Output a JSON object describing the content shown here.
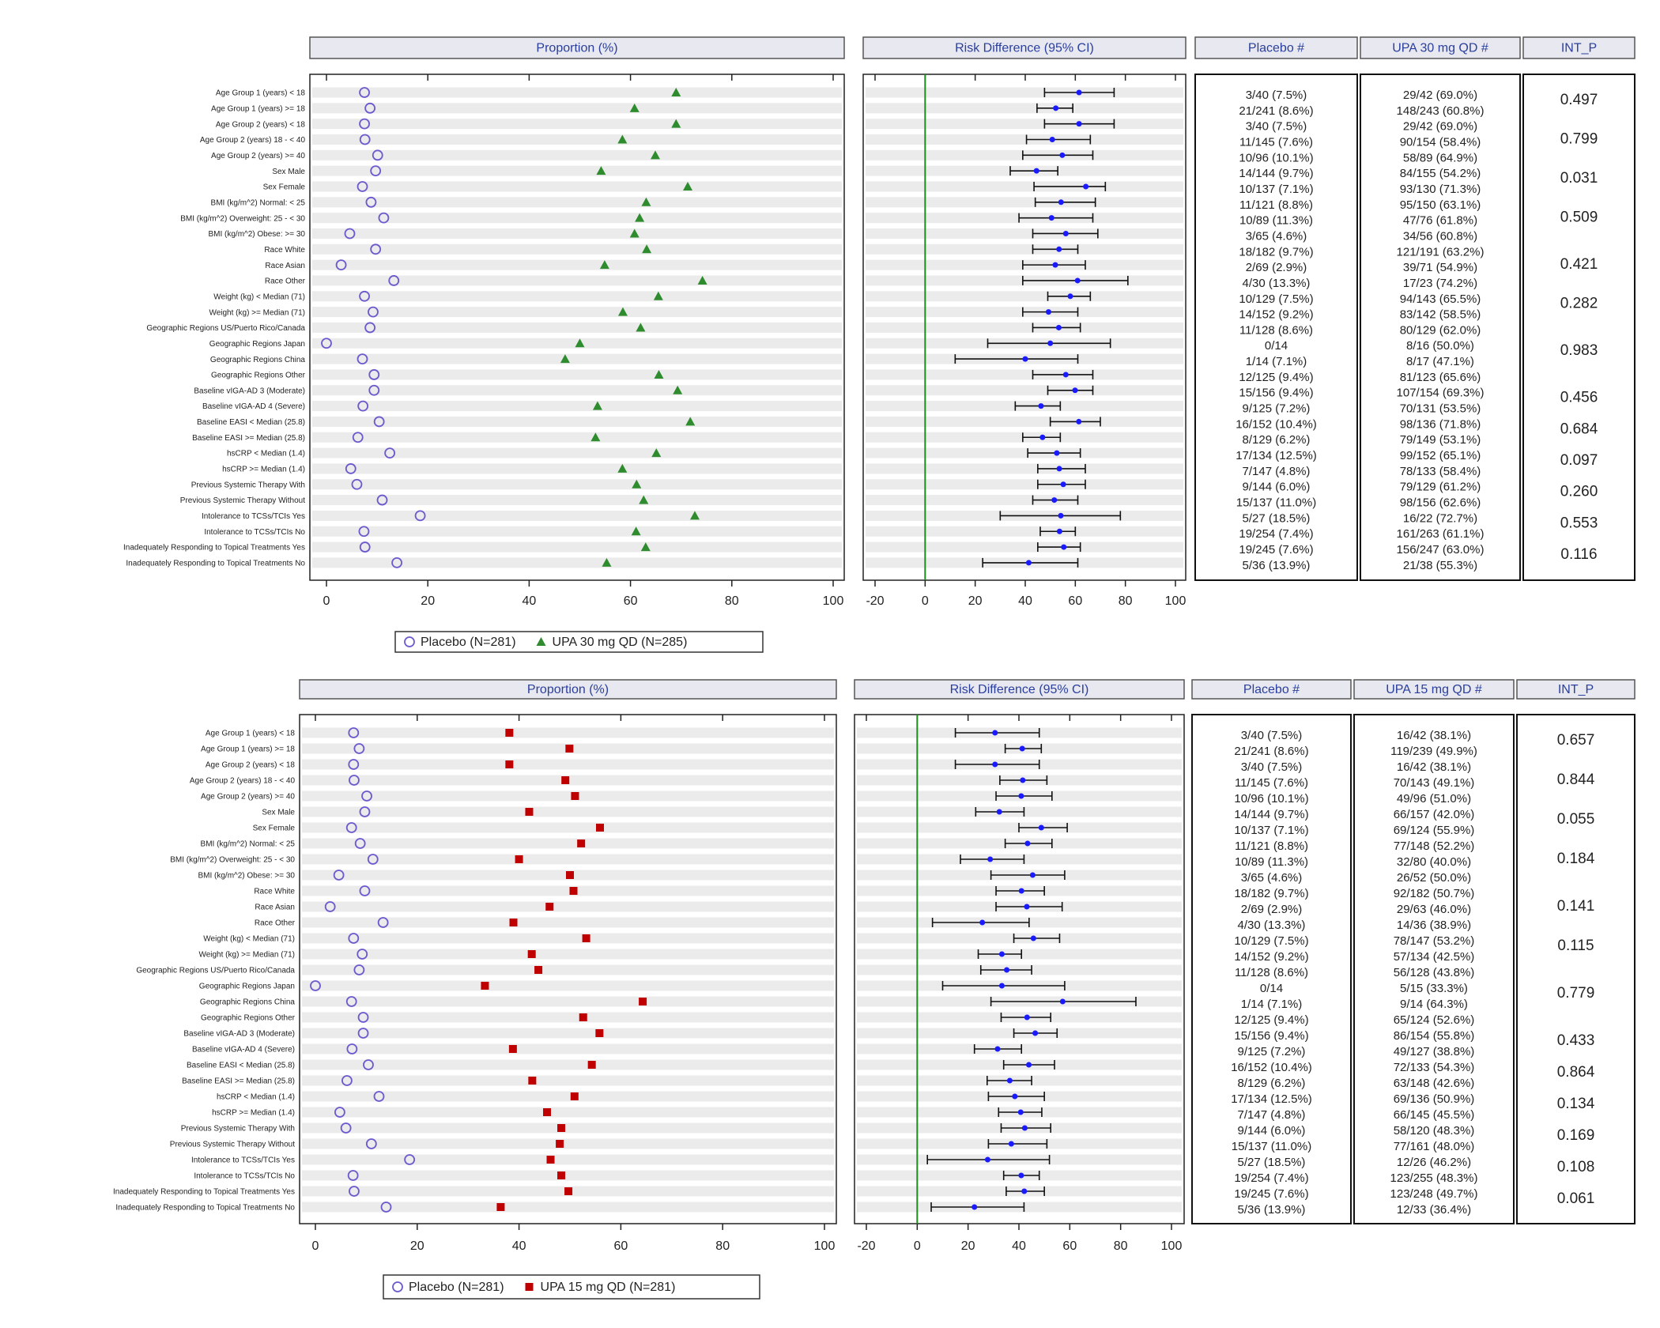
{
  "chart_data": [
    {
      "type": "forest",
      "proportion_title": "Proportion (%)",
      "risk_title": "Risk Difference (95% CI)",
      "categories": [
        "Age Group 1 (years) < 18",
        "Age Group 1 (years) >= 18",
        "Age Group 2 (years) < 18",
        "Age Group 2 (years) 18 - < 40",
        "Age Group 2 (years) >= 40",
        "Sex Male",
        "Sex Female",
        "BMI (kg/m^2) Normal: < 25",
        "BMI (kg/m^2) Overweight: 25 - < 30",
        "BMI (kg/m^2) Obese: >= 30",
        "Race White",
        "Race Asian",
        "Race Other",
        "Weight (kg) < Median (71)",
        "Weight (kg) >= Median (71)",
        "Geographic Regions US/Puerto Rico/Canada",
        "Geographic Regions Japan",
        "Geographic Regions China",
        "Geographic Regions Other",
        "Baseline vIGA-AD 3 (Moderate)",
        "Baseline vIGA-AD 4 (Severe)",
        "Baseline EASI < Median (25.8)",
        "Baseline EASI >= Median (25.8)",
        "hsCRP < Median (1.4)",
        "hsCRP >= Median (1.4)",
        "Previous Systemic Therapy With",
        "Previous Systemic Therapy Without",
        "Intolerance to TCSs/TCIs Yes",
        "Intolerance to TCSs/TCIs No",
        "Inadequately Responding to Topical Treatments Yes",
        "Inadequately Responding to Topical Treatments No"
      ],
      "xlim": [
        0,
        100
      ],
      "xticks": [
        0,
        20,
        40,
        60,
        80,
        100
      ],
      "risk_xlim": [
        -20,
        100
      ],
      "risk_xticks": [
        -20,
        0,
        20,
        40,
        60,
        80,
        100
      ],
      "risk_reference": 0,
      "series": [
        {
          "name": "Placebo (N=281)",
          "color": "#6a5acd",
          "marker": "circle",
          "values": [
            7.5,
            8.6,
            7.5,
            7.6,
            10.1,
            9.7,
            7.1,
            8.8,
            11.3,
            4.6,
            9.7,
            2.9,
            13.3,
            7.5,
            9.2,
            8.6,
            0,
            7.1,
            9.4,
            9.4,
            7.2,
            10.4,
            6.2,
            12.5,
            4.8,
            6.0,
            11.0,
            18.5,
            7.4,
            7.6,
            13.9
          ]
        },
        {
          "name": "UPA 30 mg QD (N=285)",
          "color": "#2e8b2e",
          "marker": "triangle",
          "values": [
            69.0,
            60.8,
            69.0,
            58.4,
            64.9,
            54.2,
            71.3,
            63.1,
            61.8,
            60.8,
            63.2,
            54.9,
            74.2,
            65.5,
            58.5,
            62.0,
            50.0,
            47.1,
            65.6,
            69.3,
            53.5,
            71.8,
            53.1,
            65.1,
            58.4,
            61.2,
            62.6,
            72.7,
            61.1,
            63.0,
            55.3
          ]
        }
      ],
      "risk_difference": {
        "color": "#1a1aff",
        "values": [
          61.5,
          52.2,
          61.5,
          50.8,
          54.8,
          44.5,
          64.2,
          54.3,
          50.5,
          56.2,
          53.5,
          52.0,
          60.9,
          58.0,
          49.3,
          53.4,
          50.0,
          40.0,
          56.2,
          59.9,
          46.3,
          61.4,
          46.9,
          52.6,
          53.6,
          55.2,
          51.6,
          54.2,
          53.7,
          55.4,
          41.4
        ],
        "lower": [
          47.7,
          44.7,
          47.7,
          40.5,
          39,
          34,
          43.5,
          44,
          37.5,
          43,
          43,
          39,
          39,
          49,
          39,
          43,
          25,
          12,
          43,
          49,
          36,
          50,
          39,
          41,
          45,
          45,
          43,
          30,
          46,
          45,
          23
        ],
        "upper": [
          75.5,
          59,
          75.5,
          66,
          67,
          53,
          72,
          68,
          67,
          69,
          61,
          64,
          81,
          66,
          61,
          62,
          74,
          61,
          67,
          67,
          54,
          70,
          54,
          62,
          64,
          64,
          61,
          78,
          60,
          62,
          61
        ]
      },
      "table": {
        "headers": [
          "Placebo #",
          "UPA 30 mg QD #",
          "INT_P"
        ],
        "placebo": [
          "3/40 (7.5%)",
          "21/241 (8.6%)",
          "3/40 (7.5%)",
          "11/145 (7.6%)",
          "10/96 (10.1%)",
          "14/144 (9.7%)",
          "10/137 (7.1%)",
          "11/121 (8.8%)",
          "10/89 (11.3%)",
          "3/65 (4.6%)",
          "18/182 (9.7%)",
          "2/69 (2.9%)",
          "4/30 (13.3%)",
          "10/129 (7.5%)",
          "14/152 (9.2%)",
          "11/128 (8.6%)",
          "0/14",
          "1/14 (7.1%)",
          "12/125 (9.4%)",
          "15/156 (9.4%)",
          "9/125 (7.2%)",
          "16/152 (10.4%)",
          "8/129 (6.2%)",
          "17/134 (12.5%)",
          "7/147 (4.8%)",
          "9/144 (6.0%)",
          "15/137 (11.0%)",
          "5/27 (18.5%)",
          "19/254 (7.4%)",
          "19/245 (7.6%)",
          "5/36 (13.9%)"
        ],
        "active": [
          "29/42 (69.0%)",
          "148/243 (60.8%)",
          "29/42 (69.0%)",
          "90/154 (58.4%)",
          "58/89 (64.9%)",
          "84/155 (54.2%)",
          "93/130 (71.3%)",
          "95/150 (63.1%)",
          "47/76 (61.8%)",
          "34/56 (60.8%)",
          "121/191 (63.2%)",
          "39/71 (54.9%)",
          "17/23 (74.2%)",
          "94/143 (65.5%)",
          "83/142 (58.5%)",
          "80/129 (62.0%)",
          "8/16 (50.0%)",
          "8/17 (47.1%)",
          "81/123 (65.6%)",
          "107/154 (69.3%)",
          "70/131 (53.5%)",
          "98/136 (71.8%)",
          "79/149 (53.1%)",
          "99/152 (65.1%)",
          "78/133 (58.4%)",
          "79/129 (61.2%)",
          "98/156 (62.6%)",
          "16/22 (72.7%)",
          "161/263 (61.1%)",
          "156/247 (63.0%)",
          "21/38 (55.3%)"
        ],
        "int_p": [
          "0.497",
          null,
          "0.799",
          null,
          null,
          "0.031",
          null,
          "0.509",
          null,
          null,
          "0.421",
          null,
          null,
          "0.282",
          null,
          "0.983",
          null,
          null,
          null,
          "0.456",
          null,
          "0.684",
          null,
          "0.097",
          null,
          "0.260",
          null,
          "0.553",
          null,
          "0.116",
          null
        ]
      }
    },
    {
      "type": "forest",
      "proportion_title": "Proportion (%)",
      "risk_title": "Risk Difference (95% CI)",
      "categories": [
        "Age Group 1 (years) < 18",
        "Age Group 1 (years) >= 18",
        "Age Group 2 (years) < 18",
        "Age Group 2 (years) 18 - < 40",
        "Age Group 2 (years) >= 40",
        "Sex Male",
        "Sex Female",
        "BMI (kg/m^2) Normal: < 25",
        "BMI (kg/m^2) Overweight: 25 - < 30",
        "BMI (kg/m^2) Obese: >= 30",
        "Race White",
        "Race Asian",
        "Race Other",
        "Weight (kg) < Median (71)",
        "Weight (kg) >= Median (71)",
        "Geographic Regions US/Puerto Rico/Canada",
        "Geographic Regions Japan",
        "Geographic Regions China",
        "Geographic Regions Other",
        "Baseline vIGA-AD 3 (Moderate)",
        "Baseline vIGA-AD 4 (Severe)",
        "Baseline EASI < Median (25.8)",
        "Baseline EASI >= Median (25.8)",
        "hsCRP < Median (1.4)",
        "hsCRP >= Median (1.4)",
        "Previous Systemic Therapy With",
        "Previous Systemic Therapy Without",
        "Intolerance to TCSs/TCIs Yes",
        "Intolerance to TCSs/TCIs No",
        "Inadequately Responding to Topical Treatments Yes",
        "Inadequately Responding to Topical Treatments No"
      ],
      "xlim": [
        0,
        100
      ],
      "xticks": [
        0,
        20,
        40,
        60,
        80,
        100
      ],
      "risk_xlim": [
        -20,
        100
      ],
      "risk_xticks": [
        -20,
        0,
        20,
        40,
        60,
        80,
        100
      ],
      "risk_reference": 0,
      "series": [
        {
          "name": "Placebo (N=281)",
          "color": "#6a5acd",
          "marker": "circle",
          "values": [
            7.5,
            8.6,
            7.5,
            7.6,
            10.1,
            9.7,
            7.1,
            8.8,
            11.3,
            4.6,
            9.7,
            2.9,
            13.3,
            7.5,
            9.2,
            8.6,
            0,
            7.1,
            9.4,
            9.4,
            7.2,
            10.4,
            6.2,
            12.5,
            4.8,
            6.0,
            11.0,
            18.5,
            7.4,
            7.6,
            13.9
          ]
        },
        {
          "name": "UPA 15 mg QD (N=281)",
          "color": "#c00000",
          "marker": "square",
          "values": [
            38.1,
            49.9,
            38.1,
            49.1,
            51.0,
            42.0,
            55.9,
            52.2,
            40.0,
            50.0,
            50.7,
            46.0,
            38.9,
            53.2,
            42.5,
            43.8,
            33.3,
            64.3,
            52.6,
            55.8,
            38.8,
            54.3,
            42.6,
            50.9,
            45.5,
            48.3,
            48.0,
            46.2,
            48.3,
            49.7,
            36.4
          ]
        }
      ],
      "risk_difference": {
        "color": "#1a1aff",
        "values": [
          30.6,
          41.3,
          30.6,
          41.5,
          40.9,
          32.3,
          48.8,
          43.4,
          28.7,
          45.4,
          41.0,
          43.1,
          25.6,
          45.7,
          33.3,
          35.2,
          33.3,
          57.2,
          43.2,
          46.4,
          31.6,
          43.9,
          36.4,
          38.4,
          40.7,
          42.3,
          37.0,
          27.7,
          40.9,
          42.1,
          22.5
        ],
        "lower": [
          15,
          34.6,
          15,
          32.5,
          31,
          23,
          40,
          34.6,
          17,
          29,
          31,
          31,
          6,
          38,
          24,
          25,
          10,
          29,
          33,
          38,
          22.5,
          34,
          27.5,
          28,
          32,
          33,
          28,
          4,
          34,
          35,
          5.5
        ],
        "upper": [
          48,
          48.8,
          48,
          51,
          53,
          42,
          59,
          53,
          42,
          58,
          50,
          57,
          44,
          56,
          41,
          45,
          58,
          86,
          52.5,
          55,
          41,
          54,
          45,
          50,
          49,
          52.5,
          51,
          52,
          48,
          50,
          42
        ]
      },
      "table": {
        "headers": [
          "Placebo #",
          "UPA 15 mg QD #",
          "INT_P"
        ],
        "placebo": [
          "3/40 (7.5%)",
          "21/241 (8.6%)",
          "3/40 (7.5%)",
          "11/145 (7.6%)",
          "10/96 (10.1%)",
          "14/144 (9.7%)",
          "10/137 (7.1%)",
          "11/121 (8.8%)",
          "10/89 (11.3%)",
          "3/65 (4.6%)",
          "18/182 (9.7%)",
          "2/69 (2.9%)",
          "4/30 (13.3%)",
          "10/129 (7.5%)",
          "14/152 (9.2%)",
          "11/128 (8.6%)",
          "0/14",
          "1/14 (7.1%)",
          "12/125 (9.4%)",
          "15/156 (9.4%)",
          "9/125 (7.2%)",
          "16/152 (10.4%)",
          "8/129 (6.2%)",
          "17/134 (12.5%)",
          "7/147 (4.8%)",
          "9/144 (6.0%)",
          "15/137 (11.0%)",
          "5/27 (18.5%)",
          "19/254 (7.4%)",
          "19/245 (7.6%)",
          "5/36 (13.9%)"
        ],
        "active": [
          "16/42 (38.1%)",
          "119/239 (49.9%)",
          "16/42 (38.1%)",
          "70/143 (49.1%)",
          "49/96 (51.0%)",
          "66/157 (42.0%)",
          "69/124 (55.9%)",
          "77/148 (52.2%)",
          "32/80 (40.0%)",
          "26/52 (50.0%)",
          "92/182 (50.7%)",
          "29/63 (46.0%)",
          "14/36 (38.9%)",
          "78/147 (53.2%)",
          "57/134 (42.5%)",
          "56/128 (43.8%)",
          "5/15 (33.3%)",
          "9/14 (64.3%)",
          "65/124 (52.6%)",
          "86/154 (55.8%)",
          "49/127 (38.8%)",
          "72/133 (54.3%)",
          "63/148 (42.6%)",
          "69/136 (50.9%)",
          "66/145 (45.5%)",
          "58/120 (48.3%)",
          "77/161 (48.0%)",
          "12/26 (46.2%)",
          "123/255 (48.3%)",
          "123/248 (49.7%)",
          "12/33 (36.4%)"
        ],
        "int_p": [
          "0.657",
          null,
          "0.844",
          null,
          null,
          "0.055",
          null,
          "0.184",
          null,
          null,
          "0.141",
          null,
          null,
          "0.115",
          null,
          "0.779",
          null,
          null,
          null,
          "0.433",
          null,
          "0.864",
          null,
          "0.134",
          null,
          "0.169",
          null,
          "0.108",
          null,
          "0.061",
          null
        ]
      }
    }
  ]
}
